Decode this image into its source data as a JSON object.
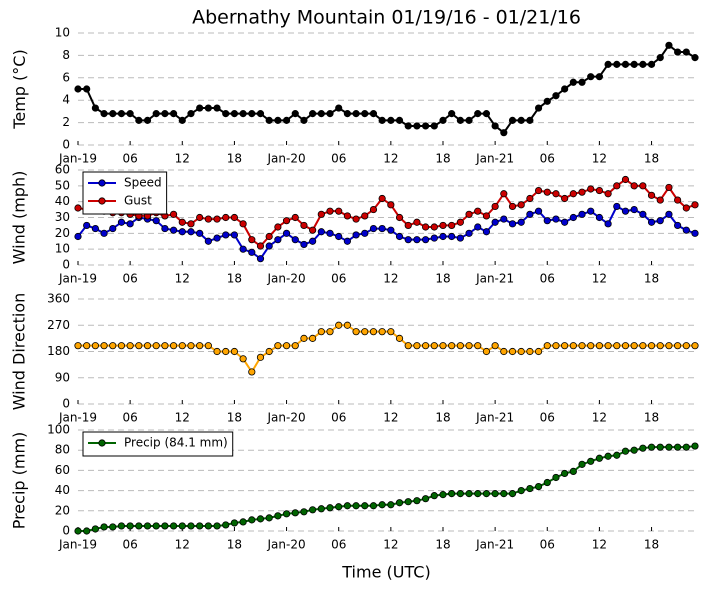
{
  "chart_data": [
    {
      "type": "line",
      "title": "Abernathy Mountain 01/19/16 - 01/21/16",
      "ylabel": "Temp ($^\\circ$C)",
      "x": [
        0,
        1,
        2,
        3,
        4,
        5,
        6,
        7,
        8,
        9,
        10,
        11,
        12,
        13,
        14,
        15,
        16,
        17,
        18,
        19,
        20,
        21,
        22,
        23,
        24,
        25,
        26,
        27,
        28,
        29,
        30,
        31,
        32,
        33,
        34,
        35,
        36,
        37,
        38,
        39,
        40,
        41,
        42,
        43,
        44,
        45,
        46,
        47,
        48,
        49,
        50,
        51,
        52,
        53,
        54,
        55,
        56,
        57,
        58,
        59,
        60,
        61,
        62,
        63,
        64,
        65,
        66,
        67,
        68,
        69,
        70,
        71
      ],
      "values": [
        5.0,
        5.0,
        3.3,
        2.8,
        2.8,
        2.8,
        2.8,
        2.2,
        2.2,
        2.8,
        2.8,
        2.8,
        2.2,
        2.8,
        3.3,
        3.3,
        3.3,
        2.8,
        2.8,
        2.8,
        2.8,
        2.8,
        2.2,
        2.2,
        2.2,
        2.8,
        2.2,
        2.8,
        2.8,
        2.8,
        3.3,
        2.8,
        2.8,
        2.8,
        2.8,
        2.2,
        2.2,
        2.2,
        1.7,
        1.7,
        1.7,
        1.7,
        2.2,
        2.8,
        2.2,
        2.2,
        2.8,
        2.8,
        1.7,
        1.1,
        2.2,
        2.2,
        2.2,
        3.3,
        3.9,
        4.4,
        5.0,
        5.6,
        5.6,
        6.1,
        6.1,
        7.2,
        7.2,
        7.2,
        7.2,
        7.2,
        7.2,
        7.8,
        8.9,
        8.3,
        8.3,
        7.8
      ],
      "color": "#000000",
      "xlim": [
        0,
        71
      ],
      "xticks": [
        {
          "value": 0,
          "label": "Jan-19"
        },
        {
          "value": 6,
          "label": "06"
        },
        {
          "value": 12,
          "label": "12"
        },
        {
          "value": 18,
          "label": "18"
        },
        {
          "value": 24,
          "label": "Jan-20"
        },
        {
          "value": 30,
          "label": "06"
        },
        {
          "value": 36,
          "label": "12"
        },
        {
          "value": 42,
          "label": "18"
        },
        {
          "value": 48,
          "label": "Jan-21"
        },
        {
          "value": 54,
          "label": "06"
        },
        {
          "value": 60,
          "label": "12"
        },
        {
          "value": 66,
          "label": "18"
        }
      ],
      "ylim": [
        0,
        10
      ],
      "yticks": [
        0,
        2,
        4,
        6,
        8,
        10
      ],
      "grid": true
    },
    {
      "type": "line",
      "ylabel": "Wind (mph)",
      "legend": "upper left",
      "x": [
        0,
        1,
        2,
        3,
        4,
        5,
        6,
        7,
        8,
        9,
        10,
        11,
        12,
        13,
        14,
        15,
        16,
        17,
        18,
        19,
        20,
        21,
        22,
        23,
        24,
        25,
        26,
        27,
        28,
        29,
        30,
        31,
        32,
        33,
        34,
        35,
        36,
        37,
        38,
        39,
        40,
        41,
        42,
        43,
        44,
        45,
        46,
        47,
        48,
        49,
        50,
        51,
        52,
        53,
        54,
        55,
        56,
        57,
        58,
        59,
        60,
        61,
        62,
        63,
        64,
        65,
        66,
        67,
        68,
        69,
        70,
        71
      ],
      "series": [
        {
          "name": "Speed",
          "color": "#0000cc",
          "values": [
            18,
            25,
            23,
            20,
            23,
            27,
            26,
            30,
            29,
            28,
            23,
            22,
            21,
            21,
            20,
            15,
            17,
            19,
            19,
            10,
            8,
            4,
            12,
            16,
            20,
            16,
            13,
            15,
            21,
            20,
            18,
            15,
            19,
            20,
            23,
            23,
            22,
            18,
            16,
            16,
            16,
            17,
            18,
            18,
            17,
            20,
            24,
            21,
            27,
            29,
            26,
            27,
            32,
            34,
            28,
            29,
            27,
            30,
            32,
            34,
            30,
            26,
            37,
            34,
            35,
            32,
            27,
            28,
            32,
            25,
            22,
            20
          ]
        },
        {
          "name": "Gust",
          "color": "#cc0000",
          "values": [
            36,
            35,
            35,
            34,
            33,
            33,
            32,
            31,
            31,
            33,
            31,
            32,
            27,
            26,
            30,
            29,
            29,
            30,
            30,
            26,
            16,
            12,
            18,
            24,
            28,
            30,
            25,
            22,
            32,
            34,
            34,
            31,
            29,
            31,
            35,
            42,
            38,
            30,
            25,
            27,
            24,
            24,
            25,
            25,
            27,
            32,
            34,
            31,
            37,
            45,
            37,
            38,
            42,
            47,
            46,
            45,
            42,
            45,
            46,
            48,
            47,
            45,
            50,
            54,
            50,
            50,
            44,
            41,
            49,
            41,
            36,
            38
          ]
        }
      ],
      "xlim": [
        0,
        71
      ],
      "xticks": [
        {
          "value": 0,
          "label": "Jan-19"
        },
        {
          "value": 6,
          "label": "06"
        },
        {
          "value": 12,
          "label": "12"
        },
        {
          "value": 18,
          "label": "18"
        },
        {
          "value": 24,
          "label": "Jan-20"
        },
        {
          "value": 30,
          "label": "06"
        },
        {
          "value": 36,
          "label": "12"
        },
        {
          "value": 42,
          "label": "18"
        },
        {
          "value": 48,
          "label": "Jan-21"
        },
        {
          "value": 54,
          "label": "06"
        },
        {
          "value": 60,
          "label": "12"
        },
        {
          "value": 66,
          "label": "18"
        }
      ],
      "ylim": [
        0,
        60
      ],
      "yticks": [
        0,
        10,
        20,
        30,
        40,
        50,
        60
      ],
      "grid": true
    },
    {
      "type": "line",
      "ylabel": "Wind Direction",
      "x": [
        0,
        1,
        2,
        3,
        4,
        5,
        6,
        7,
        8,
        9,
        10,
        11,
        12,
        13,
        14,
        15,
        16,
        17,
        18,
        19,
        20,
        21,
        22,
        23,
        24,
        25,
        26,
        27,
        28,
        29,
        30,
        31,
        32,
        33,
        34,
        35,
        36,
        37,
        38,
        39,
        40,
        41,
        42,
        43,
        44,
        45,
        46,
        47,
        48,
        49,
        50,
        51,
        52,
        53,
        54,
        55,
        56,
        57,
        58,
        59,
        60,
        61,
        62,
        63,
        64,
        65,
        66,
        67,
        68,
        69,
        70,
        71
      ],
      "values": [
        200,
        200,
        200,
        200,
        200,
        200,
        200,
        200,
        200,
        200,
        200,
        200,
        200,
        200,
        200,
        200,
        180,
        180,
        180,
        155,
        110,
        160,
        180,
        200,
        200,
        200,
        225,
        225,
        248,
        248,
        270,
        270,
        248,
        248,
        248,
        248,
        248,
        225,
        200,
        200,
        200,
        200,
        200,
        200,
        200,
        200,
        200,
        180,
        200,
        180,
        180,
        180,
        180,
        180,
        200,
        200,
        200,
        200,
        200,
        200,
        200,
        200,
        200,
        200,
        200,
        200,
        200,
        200,
        200,
        200,
        200,
        200
      ],
      "color": "#ffa500",
      "xlim": [
        0,
        71
      ],
      "xticks": [
        {
          "value": 0,
          "label": "Jan-19"
        },
        {
          "value": 6,
          "label": "06"
        },
        {
          "value": 12,
          "label": "12"
        },
        {
          "value": 18,
          "label": "18"
        },
        {
          "value": 24,
          "label": "Jan-20"
        },
        {
          "value": 30,
          "label": "06"
        },
        {
          "value": 36,
          "label": "12"
        },
        {
          "value": 42,
          "label": "18"
        },
        {
          "value": 48,
          "label": "Jan-21"
        },
        {
          "value": 54,
          "label": "06"
        },
        {
          "value": 60,
          "label": "12"
        },
        {
          "value": 66,
          "label": "18"
        }
      ],
      "ylim": [
        0,
        360
      ],
      "yticks": [
        0,
        90,
        180,
        270,
        360
      ],
      "grid": true
    },
    {
      "type": "line",
      "ylabel": "Precip (mm)",
      "xlabel": "Time (UTC)",
      "legend": "upper left",
      "x": [
        0,
        1,
        2,
        3,
        4,
        5,
        6,
        7,
        8,
        9,
        10,
        11,
        12,
        13,
        14,
        15,
        16,
        17,
        18,
        19,
        20,
        21,
        22,
        23,
        24,
        25,
        26,
        27,
        28,
        29,
        30,
        31,
        32,
        33,
        34,
        35,
        36,
        37,
        38,
        39,
        40,
        41,
        42,
        43,
        44,
        45,
        46,
        47,
        48,
        49,
        50,
        51,
        52,
        53,
        54,
        55,
        56,
        57,
        58,
        59,
        60,
        61,
        62,
        63,
        64,
        65,
        66,
        67,
        68,
        69,
        70,
        71
      ],
      "series": [
        {
          "name": "Precip (84.1 mm)",
          "color": "#006400",
          "values": [
            0,
            0,
            2,
            4,
            4,
            5,
            5,
            5,
            5,
            5,
            5,
            5,
            5,
            5,
            5,
            5,
            5,
            6,
            8,
            9,
            11,
            12,
            13,
            15,
            17,
            18,
            19,
            21,
            22,
            23,
            24,
            25,
            25,
            25,
            25,
            26,
            26,
            28,
            29,
            30,
            32,
            35,
            36,
            37,
            37,
            37,
            37,
            37,
            37,
            37,
            37,
            40,
            42,
            44,
            48,
            53,
            57,
            59,
            66,
            69,
            72,
            74,
            75,
            79,
            80,
            82,
            83,
            83,
            83,
            83,
            83,
            84.1
          ]
        }
      ],
      "xlim": [
        0,
        71
      ],
      "xticks": [
        {
          "value": 0,
          "label": "Jan-19"
        },
        {
          "value": 6,
          "label": "06"
        },
        {
          "value": 12,
          "label": "12"
        },
        {
          "value": 18,
          "label": "18"
        },
        {
          "value": 24,
          "label": "Jan-20"
        },
        {
          "value": 30,
          "label": "06"
        },
        {
          "value": 36,
          "label": "12"
        },
        {
          "value": 42,
          "label": "18"
        },
        {
          "value": 48,
          "label": "Jan-21"
        },
        {
          "value": 54,
          "label": "06"
        },
        {
          "value": 60,
          "label": "12"
        },
        {
          "value": 66,
          "label": "18"
        }
      ],
      "ylim": [
        0,
        100
      ],
      "yticks": [
        0,
        20,
        40,
        60,
        80,
        100
      ],
      "grid": true
    }
  ]
}
